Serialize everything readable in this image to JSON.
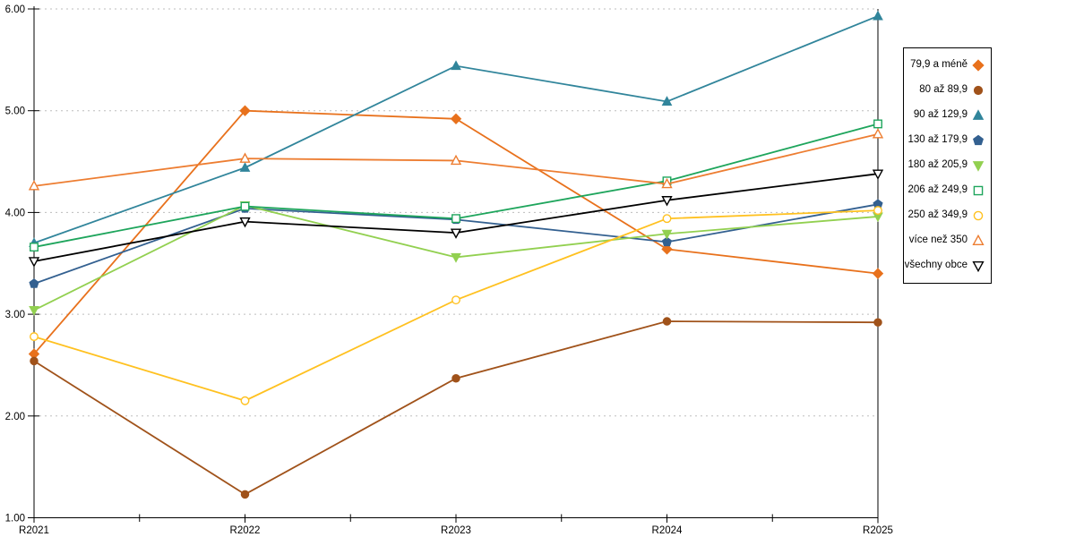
{
  "chart_data": {
    "type": "line",
    "title": "",
    "xlabel": "",
    "ylabel": "",
    "categories": [
      "R2021",
      "R2022",
      "R2023",
      "R2024",
      "R2025"
    ],
    "ylim": [
      1,
      6
    ],
    "y_tick_labels": [
      "6.00",
      "5.00",
      "4.00",
      "3.00",
      "2.00",
      "1.00"
    ],
    "grid": "horizontal-dashed",
    "grid_color": "#BDBDBD",
    "axis_color": "#000000",
    "legend_position": "right",
    "series": [
      {
        "name": "79,9 a méně",
        "color": "#E8711C",
        "marker": "diamond",
        "filled": true,
        "values": [
          2.61,
          5.0,
          4.92,
          3.64,
          3.4
        ]
      },
      {
        "name": "80 až 89,9",
        "color": "#A0521A",
        "marker": "circle",
        "filled": true,
        "values": [
          2.54,
          1.23,
          2.37,
          2.93,
          2.92
        ]
      },
      {
        "name": "90 až 129,9",
        "color": "#31859B",
        "marker": "triangle-up",
        "filled": true,
        "values": [
          3.7,
          4.44,
          5.44,
          5.09,
          5.93
        ]
      },
      {
        "name": "130 až 179,9",
        "color": "#336090",
        "marker": "pentagon",
        "filled": true,
        "values": [
          3.3,
          4.04,
          3.93,
          3.71,
          4.08
        ]
      },
      {
        "name": "180 až 205,9",
        "color": "#92D050",
        "marker": "triangle-down",
        "filled": true,
        "values": [
          3.04,
          4.07,
          3.56,
          3.79,
          3.96
        ]
      },
      {
        "name": "206 až 249,9",
        "color": "#1EA55C",
        "marker": "square",
        "filled": false,
        "values": [
          3.66,
          4.06,
          3.94,
          4.31,
          4.87
        ]
      },
      {
        "name": "250 až 349,9",
        "color": "#FFC120",
        "marker": "circle",
        "filled": false,
        "values": [
          2.78,
          2.15,
          3.14,
          3.94,
          4.02
        ]
      },
      {
        "name": "více než 350",
        "color": "#ED7D31",
        "marker": "triangle-up",
        "filled": false,
        "values": [
          4.26,
          4.53,
          4.51,
          4.28,
          4.77
        ]
      },
      {
        "name": "všechny obce",
        "color": "#000000",
        "marker": "triangle-down",
        "filled": false,
        "values": [
          3.52,
          3.91,
          3.8,
          4.12,
          4.38
        ]
      }
    ]
  }
}
